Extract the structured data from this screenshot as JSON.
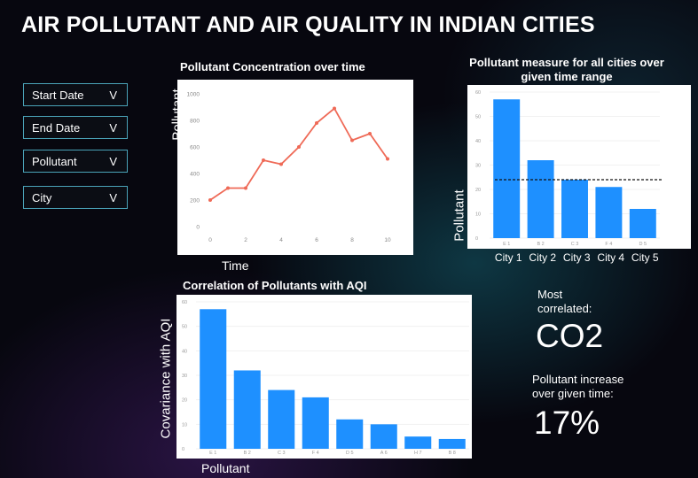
{
  "header": {
    "title": "AIR POLLUTANT AND AIR QUALITY IN INDIAN CITIES"
  },
  "filters": [
    {
      "label": "Start Date",
      "chevron": "V"
    },
    {
      "label": "End Date",
      "chevron": "V"
    },
    {
      "label": "Pollutant",
      "chevron": "V"
    },
    {
      "label": "City",
      "chevron": "V"
    }
  ],
  "stats": {
    "most_correlated_label": "Most correlated:",
    "most_correlated_value": "CO2",
    "increase_label": "Pollutant increase over given time:",
    "increase_value": "17%"
  },
  "colors": {
    "line": "#ef6a57",
    "bar": "#1e90ff",
    "border": "#4aa3b8"
  },
  "chart_data": [
    {
      "type": "line",
      "title": "Pollutant Concentration over time",
      "xlabel": "Time",
      "ylabel": "Pollutant",
      "x": [
        0,
        1,
        2,
        3,
        4,
        5,
        6,
        7,
        8,
        9,
        10
      ],
      "y": [
        200,
        290,
        290,
        500,
        470,
        600,
        780,
        890,
        650,
        700,
        510
      ],
      "xticks": [
        "0",
        "2",
        "4",
        "6",
        "8",
        "10"
      ],
      "yticks": [
        "0",
        "200",
        "400",
        "600",
        "800",
        "1000"
      ],
      "ylim": [
        0,
        1000
      ],
      "xlim": [
        0,
        10
      ],
      "grid": false
    },
    {
      "type": "bar",
      "title": "Pollutant measure for all cities over given time range",
      "ylabel": "Pollutant",
      "categories": [
        "City 1",
        "City 2",
        "City 3",
        "City 4",
        "City 5"
      ],
      "tick_labels": [
        "E 1",
        "B 2",
        "C 3",
        "F 4",
        "D 5"
      ],
      "values": [
        57,
        32,
        24,
        21,
        12
      ],
      "reference_line": 24,
      "yticks": [
        "0",
        "10",
        "20",
        "30",
        "40",
        "50",
        "60"
      ],
      "ylim": [
        0,
        60
      ]
    },
    {
      "type": "bar",
      "title": "Correlation of Pollutants with AQI",
      "xlabel": "Pollutant",
      "ylabel": "Covariance with AQI",
      "categories": [
        "E 1",
        "B 2",
        "C 3",
        "F 4",
        "D 5",
        "A 6",
        "H 7",
        "B 8"
      ],
      "values": [
        57,
        32,
        24,
        21,
        12,
        10,
        5,
        4
      ],
      "yticks": [
        "0",
        "10",
        "20",
        "30",
        "40",
        "50",
        "60"
      ],
      "ylim": [
        0,
        60
      ]
    }
  ]
}
